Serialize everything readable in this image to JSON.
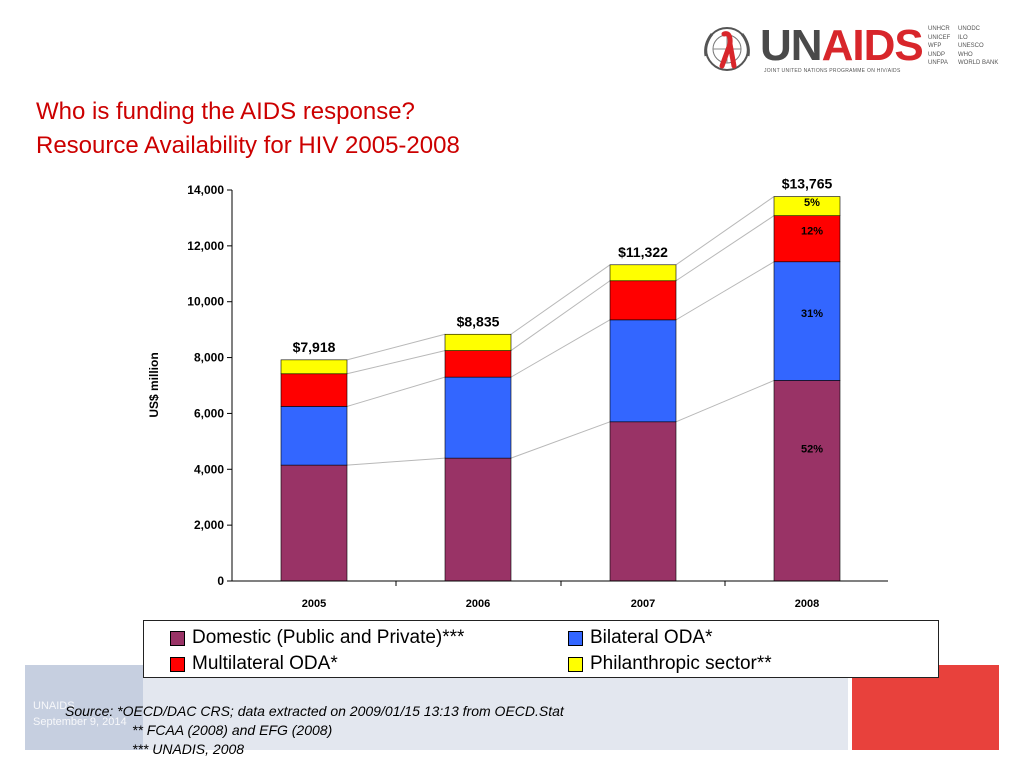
{
  "header": {
    "title_line1": "Who is funding the AIDS response?",
    "title_line2": "Resource Availability for HIV 2005-2008"
  },
  "logo": {
    "un": "UN",
    "aids": "AIDS",
    "tagline": "JOINT UNITED NATIONS PROGRAMME ON HIV/AIDS",
    "cosponsors_col1": [
      "UNHCR",
      "UNICEF",
      "WFP",
      "UNDP",
      "UNFPA"
    ],
    "cosponsors_col2": [
      "UNODC",
      "ILO",
      "UNESCO",
      "WHO",
      "WORLD BANK"
    ]
  },
  "chart_data": {
    "type": "bar",
    "stacked": true,
    "categories": [
      "2005",
      "2006",
      "2007",
      "2008"
    ],
    "series": [
      {
        "name": "Domestic (Public and Private)***",
        "color": "#993366",
        "values": [
          4150,
          4400,
          5700,
          7180
        ]
      },
      {
        "name": "Bilateral ODA*",
        "color": "#3366ff",
        "values": [
          2100,
          2900,
          3650,
          4250
        ]
      },
      {
        "name": "Multilateral ODA*",
        "color": "#ff0000",
        "values": [
          1170,
          950,
          1400,
          1650
        ]
      },
      {
        "name": "Philanthropic sector**",
        "color": "#ffff00",
        "values": [
          498,
          585,
          572,
          685
        ]
      }
    ],
    "totals": [
      "$7,918",
      "$8,835",
      "$11,322",
      "$13,765"
    ],
    "segment_labels_2008": [
      "52%",
      "31%",
      "12%",
      "5%"
    ],
    "ylabel": "US$ million",
    "xlabel": "",
    "ylim": [
      0,
      14000
    ],
    "yticks": [
      0,
      2000,
      4000,
      6000,
      8000,
      10000,
      12000,
      14000
    ],
    "ytick_labels": [
      "0",
      "2,000",
      "4,000",
      "6,000",
      "8,000",
      "10,000",
      "12,000",
      "14,000"
    ],
    "connector_lines": true,
    "grid": false,
    "legend_position": "bottom"
  },
  "legend": {
    "items": [
      {
        "label": "Domestic (Public and Private)***",
        "color": "#993366"
      },
      {
        "label": "Bilateral ODA*",
        "color": "#3366ff"
      },
      {
        "label": "Multilateral ODA*",
        "color": "#ff0000"
      },
      {
        "label": "Philanthropic sector**",
        "color": "#ffff00"
      }
    ]
  },
  "source": {
    "line1": "Source: *OECD/DAC CRS; data extracted on 2009/01/15 13:13 from OECD.Stat",
    "line2": "** FCAA (2008) and EFG (2008)",
    "line3": "*** UNADIS, 2008"
  },
  "footer": {
    "org": "UNAIDS",
    "date": "September 9, 2014"
  }
}
